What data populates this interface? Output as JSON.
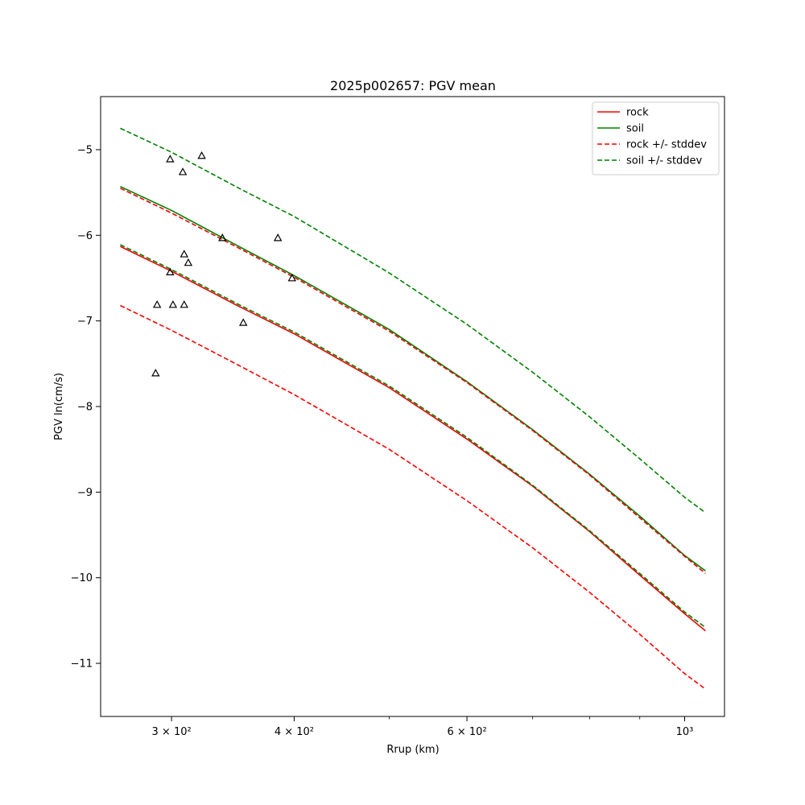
{
  "chart_data": {
    "type": "line",
    "title": "2025p002657: PGV mean",
    "xlabel": "Rrup (km)",
    "ylabel": "PGV ln(cm/s)",
    "xscale": "log",
    "xlim": [
      254,
      1098
    ],
    "ylim": [
      -11.62,
      -4.38
    ],
    "grid": false,
    "legend_position": "top-right",
    "x_major_ticks": [
      {
        "value": 300,
        "label": "3 × 10²"
      },
      {
        "value": 400,
        "label": "4 × 10²"
      },
      {
        "value": 600,
        "label": "6 × 10²"
      },
      {
        "value": 1000,
        "label": "10³"
      }
    ],
    "x_minor_ticks": [
      500,
      700,
      800,
      900
    ],
    "y_ticks": [
      {
        "value": -5,
        "label": "−5"
      },
      {
        "value": -6,
        "label": "−6"
      },
      {
        "value": -7,
        "label": "−7"
      },
      {
        "value": -8,
        "label": "−8"
      },
      {
        "value": -9,
        "label": "−9"
      },
      {
        "value": -10,
        "label": "−10"
      },
      {
        "value": -11,
        "label": "−11"
      }
    ],
    "series": [
      {
        "name": "rock",
        "color": "#ff0000",
        "style": "solid",
        "x": [
          266,
          300,
          350,
          400,
          500,
          600,
          700,
          800,
          900,
          1000,
          1050
        ],
        "y": [
          -6.13,
          -6.42,
          -6.82,
          -7.15,
          -7.78,
          -8.38,
          -8.93,
          -9.46,
          -9.97,
          -10.42,
          -10.62
        ]
      },
      {
        "name": "soil",
        "color": "#008000",
        "style": "solid",
        "x": [
          266,
          300,
          350,
          400,
          500,
          600,
          700,
          800,
          900,
          1000,
          1050
        ],
        "y": [
          -5.43,
          -5.71,
          -6.12,
          -6.47,
          -7.1,
          -7.71,
          -8.27,
          -8.79,
          -9.28,
          -9.74,
          -9.92
        ]
      },
      {
        "name": "rock +/- stddev",
        "color": "#ff0000",
        "style": "dashed",
        "x": [
          266,
          300,
          350,
          400,
          500,
          600,
          700,
          800,
          900,
          1000,
          1050
        ],
        "y": [
          -5.45,
          -5.74,
          -6.14,
          -6.49,
          -7.12,
          -7.72,
          -8.28,
          -8.8,
          -9.3,
          -9.75,
          -9.95
        ]
      },
      {
        "name": "",
        "color": "#ff0000",
        "style": "dashed",
        "x": [
          266,
          300,
          350,
          400,
          500,
          600,
          700,
          800,
          900,
          1000,
          1050
        ],
        "y": [
          -6.82,
          -7.11,
          -7.51,
          -7.86,
          -8.5,
          -9.1,
          -9.65,
          -10.17,
          -10.66,
          -11.12,
          -11.3
        ]
      },
      {
        "name": "soil +/- stddev",
        "color": "#008000",
        "style": "dashed",
        "x": [
          266,
          300,
          350,
          400,
          500,
          600,
          700,
          800,
          900,
          1000,
          1050
        ],
        "y": [
          -4.75,
          -5.03,
          -5.44,
          -5.78,
          -6.44,
          -7.04,
          -7.6,
          -8.12,
          -8.61,
          -9.06,
          -9.24
        ]
      },
      {
        "name": "",
        "color": "#008000",
        "style": "dashed",
        "x": [
          266,
          300,
          350,
          400,
          500,
          600,
          700,
          800,
          900,
          1000,
          1050
        ],
        "y": [
          -6.11,
          -6.4,
          -6.8,
          -7.13,
          -7.76,
          -8.36,
          -8.92,
          -9.45,
          -9.95,
          -10.4,
          -10.58
        ]
      }
    ],
    "observations": {
      "marker": "triangle",
      "color": "#000000",
      "points": [
        {
          "x": 299,
          "y": -5.11
        },
        {
          "x": 308,
          "y": -5.26
        },
        {
          "x": 322,
          "y": -5.07
        },
        {
          "x": 338,
          "y": -6.03
        },
        {
          "x": 309,
          "y": -6.22
        },
        {
          "x": 312,
          "y": -6.32
        },
        {
          "x": 299,
          "y": -6.43
        },
        {
          "x": 290,
          "y": -6.81
        },
        {
          "x": 301,
          "y": -6.81
        },
        {
          "x": 309,
          "y": -6.81
        },
        {
          "x": 355,
          "y": -7.02
        },
        {
          "x": 385,
          "y": -6.03
        },
        {
          "x": 398,
          "y": -6.5
        },
        {
          "x": 289,
          "y": -7.61
        }
      ]
    },
    "legend": [
      {
        "label": "rock",
        "color": "#ff0000",
        "style": "solid"
      },
      {
        "label": "soil",
        "color": "#008000",
        "style": "solid"
      },
      {
        "label": "rock +/- stddev",
        "color": "#ff0000",
        "style": "dashed"
      },
      {
        "label": "soil +/- stddev",
        "color": "#008000",
        "style": "dashed"
      }
    ]
  }
}
